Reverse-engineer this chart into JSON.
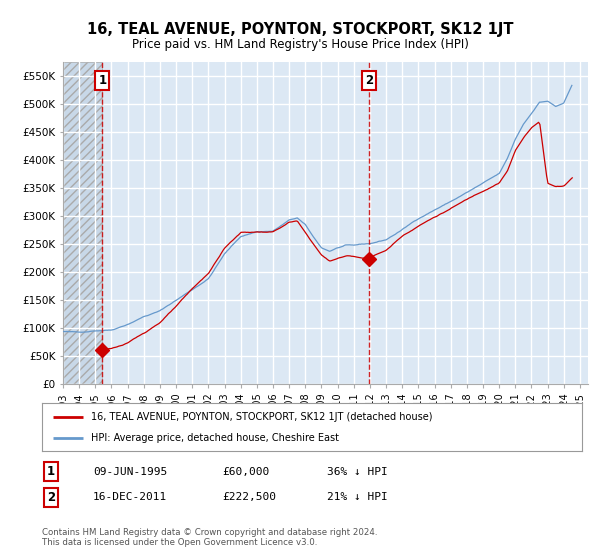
{
  "title": "16, TEAL AVENUE, POYNTON, STOCKPORT, SK12 1JT",
  "subtitle": "Price paid vs. HM Land Registry's House Price Index (HPI)",
  "ylim": [
    0,
    575000
  ],
  "yticks": [
    0,
    50000,
    100000,
    150000,
    200000,
    250000,
    300000,
    350000,
    400000,
    450000,
    500000,
    550000
  ],
  "ytick_labels": [
    "£0",
    "£50K",
    "£100K",
    "£150K",
    "£200K",
    "£250K",
    "£300K",
    "£350K",
    "£400K",
    "£450K",
    "£500K",
    "£550K"
  ],
  "xlim_start": 1993.0,
  "xlim_end": 2025.5,
  "background_color": "#ffffff",
  "plot_bg_color": "#dce8f4",
  "grid_color": "#ffffff",
  "sale1_date": 1995.44,
  "sale1_price": 60000,
  "sale2_date": 2011.96,
  "sale2_price": 222500,
  "legend_line1": "16, TEAL AVENUE, POYNTON, STOCKPORT, SK12 1JT (detached house)",
  "legend_line2": "HPI: Average price, detached house, Cheshire East",
  "table_row1": [
    "1",
    "09-JUN-1995",
    "£60,000",
    "36% ↓ HPI"
  ],
  "table_row2": [
    "2",
    "16-DEC-2011",
    "£222,500",
    "21% ↓ HPI"
  ],
  "footer": "Contains HM Land Registry data © Crown copyright and database right 2024.\nThis data is licensed under the Open Government Licence v3.0.",
  "red_line_color": "#cc0000",
  "blue_line_color": "#6699cc"
}
